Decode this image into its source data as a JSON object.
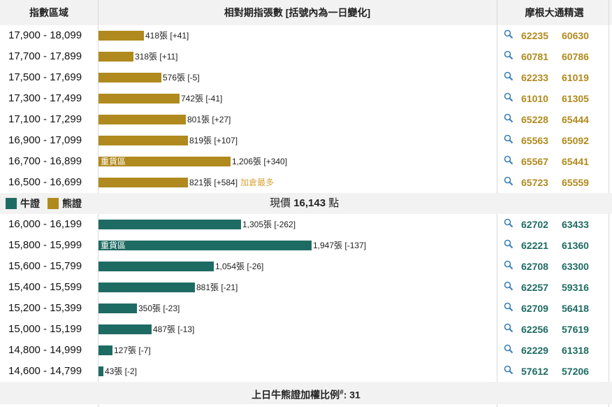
{
  "header": {
    "col_range": "指數區域",
    "col_chart": "相對期指張數 [括號內為一日變化]",
    "col_jpm": "摩根大通精選"
  },
  "colors": {
    "bear": "#b08a1e",
    "bull": "#1e6b63",
    "note": "#d9a53a"
  },
  "icons": {
    "search": "search-icon"
  },
  "bear_rows": [
    {
      "range": "17,900 - 18,099",
      "count": 418,
      "label": "418張 [+41]",
      "heavy": "",
      "note": "",
      "codes": [
        "62235",
        "60630"
      ]
    },
    {
      "range": "17,700 - 17,899",
      "count": 318,
      "label": "318張 [+11]",
      "heavy": "",
      "note": "",
      "codes": [
        "60781",
        "60786"
      ]
    },
    {
      "range": "17,500 - 17,699",
      "count": 576,
      "label": "576張 [-5]",
      "heavy": "",
      "note": "",
      "codes": [
        "62233",
        "61019"
      ]
    },
    {
      "range": "17,300 - 17,499",
      "count": 742,
      "label": "742張 [-41]",
      "heavy": "",
      "note": "",
      "codes": [
        "61010",
        "61305"
      ]
    },
    {
      "range": "17,100 - 17,299",
      "count": 801,
      "label": "801張 [+27]",
      "heavy": "",
      "note": "",
      "codes": [
        "65228",
        "65444"
      ]
    },
    {
      "range": "16,900 - 17,099",
      "count": 819,
      "label": "819張 [+107]",
      "heavy": "",
      "note": "",
      "codes": [
        "65563",
        "65092"
      ]
    },
    {
      "range": "16,700 - 16,899",
      "count": 1206,
      "label": "1,206張 [+340]",
      "heavy": "重貨區",
      "note": "",
      "codes": [
        "65567",
        "65441"
      ]
    },
    {
      "range": "16,500 - 16,699",
      "count": 821,
      "label": "821張 [+584]",
      "heavy": "",
      "note": "加倉最多",
      "codes": [
        "65723",
        "65559"
      ]
    }
  ],
  "middle": {
    "legend_bull": "牛證",
    "legend_bear": "熊證",
    "price_prefix": "現價",
    "price_value": "16,143",
    "price_suffix": "點"
  },
  "bull_rows": [
    {
      "range": "16,000 - 16,199",
      "count": 1305,
      "label": "1,305張 [-262]",
      "heavy": "",
      "note": "",
      "codes": [
        "62702",
        "63433"
      ]
    },
    {
      "range": "15,800 - 15,999",
      "count": 1947,
      "label": "1,947張 [-137]",
      "heavy": "重貨區",
      "note": "",
      "codes": [
        "62221",
        "61360"
      ]
    },
    {
      "range": "15,600 - 15,799",
      "count": 1054,
      "label": "1,054張 [-26]",
      "heavy": "",
      "note": "",
      "codes": [
        "62708",
        "63300"
      ]
    },
    {
      "range": "15,400 - 15,599",
      "count": 881,
      "label": "881張 [-21]",
      "heavy": "",
      "note": "",
      "codes": [
        "62257",
        "59316"
      ]
    },
    {
      "range": "15,200 - 15,399",
      "count": 350,
      "label": "350張 [-23]",
      "heavy": "",
      "note": "",
      "codes": [
        "62709",
        "56418"
      ]
    },
    {
      "range": "15,000 - 15,199",
      "count": 487,
      "label": "487張 [-13]",
      "heavy": "",
      "note": "",
      "codes": [
        "62256",
        "57619"
      ]
    },
    {
      "range": "14,800 - 14,999",
      "count": 127,
      "label": "127張 [-7]",
      "heavy": "",
      "note": "",
      "codes": [
        "62229",
        "61318"
      ]
    },
    {
      "range": "14,600 - 14,799",
      "count": 43,
      "label": "43張 [-2]",
      "heavy": "",
      "note": "",
      "codes": [
        "57612",
        "57206"
      ]
    }
  ],
  "footer": {
    "text": "上日牛熊證加權比例",
    "superscript": "#",
    "value": ": 31"
  }
}
